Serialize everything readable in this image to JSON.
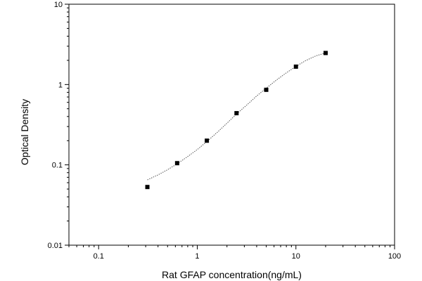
{
  "chart_data": {
    "type": "scatter",
    "xlabel": "Rat GFAP concentration(ng/mL)",
    "ylabel": "Optical Density",
    "x_scale": "log",
    "y_scale": "log",
    "xlim": [
      0.05,
      100
    ],
    "ylim": [
      0.01,
      10
    ],
    "x_tick_labels": [
      "0.1",
      "1",
      "10",
      "100"
    ],
    "y_tick_labels": [
      "0.01",
      "0.1",
      "1",
      "10"
    ],
    "grid": false,
    "legend": "none",
    "points": {
      "x": [
        0.312,
        0.625,
        1.25,
        2.5,
        5,
        10,
        20
      ],
      "y": [
        0.053,
        0.105,
        0.2,
        0.44,
        0.86,
        1.67,
        2.47
      ]
    },
    "fit_curve": {
      "style": "dotted",
      "x": [
        0.312,
        0.4,
        0.5,
        0.625,
        0.8,
        1.0,
        1.25,
        1.6,
        2.0,
        2.5,
        3.2,
        4.0,
        5.0,
        6.3,
        8.0,
        10,
        12.5,
        16,
        20
      ],
      "y": [
        0.065,
        0.075,
        0.087,
        0.103,
        0.127,
        0.155,
        0.195,
        0.255,
        0.33,
        0.43,
        0.56,
        0.72,
        0.9,
        1.13,
        1.4,
        1.68,
        1.98,
        2.28,
        2.47
      ]
    }
  }
}
